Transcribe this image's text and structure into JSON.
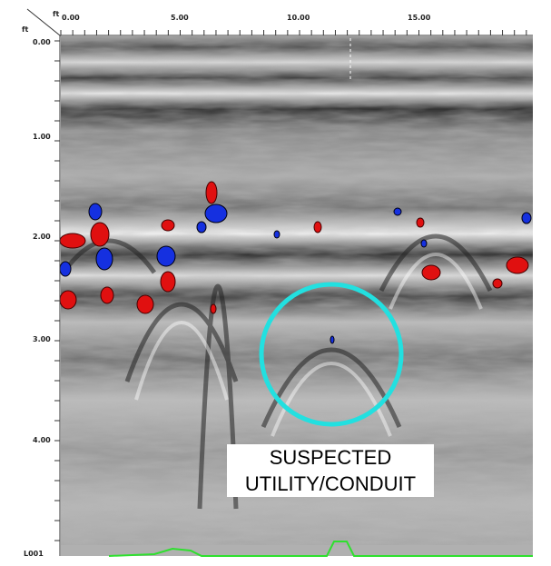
{
  "top_axis": {
    "unit": "ft",
    "labels": [
      "0.00",
      "5.00",
      "10.00",
      "15.00"
    ]
  },
  "left_axis": {
    "unit": "ft",
    "labels": [
      "0.00",
      "1.00",
      "2.00",
      "3.00",
      "4.00"
    ]
  },
  "line_label": "L001",
  "annotation": {
    "lines": [
      "SUSPECTED",
      "UTILITY/CONDUIT"
    ]
  }
}
